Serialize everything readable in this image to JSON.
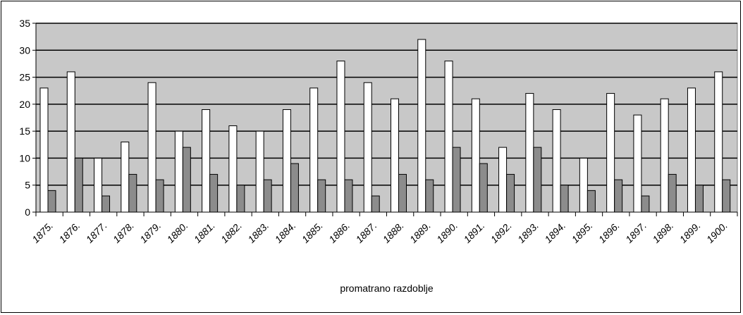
{
  "chart_data": {
    "type": "bar",
    "title": "",
    "xlabel": "promatrano razdoblje",
    "ylabel": "",
    "ylim": [
      0,
      35
    ],
    "yticks": [
      0,
      5,
      10,
      15,
      20,
      25,
      30,
      35
    ],
    "grid": true,
    "legend": "none",
    "categories": [
      "1875.",
      "1876.",
      "1877.",
      "1878.",
      "1879.",
      "1880.",
      "1881.",
      "1882.",
      "1883.",
      "1884.",
      "1885.",
      "1886.",
      "1887.",
      "1888.",
      "1889.",
      "1890.",
      "1891.",
      "1892.",
      "1893.",
      "1894.",
      "1895.",
      "1896.",
      "1897.",
      "1898.",
      "1899.",
      "1900."
    ],
    "series": [
      {
        "color": "#ffffff",
        "values": [
          23,
          26,
          10,
          13,
          24,
          15,
          19,
          16,
          15,
          19,
          23,
          28,
          24,
          21,
          32,
          28,
          21,
          12,
          22,
          19,
          10,
          22,
          18,
          21,
          23,
          26
        ]
      },
      {
        "color": "#8c8c8c",
        "values": [
          4,
          10,
          3,
          7,
          6,
          12,
          7,
          5,
          6,
          9,
          6,
          6,
          3,
          7,
          6,
          12,
          9,
          7,
          12,
          5,
          4,
          6,
          3,
          7,
          5,
          6
        ]
      }
    ],
    "colors": {
      "plot_bg": "#c8c8c8",
      "grid": "#000000"
    }
  }
}
